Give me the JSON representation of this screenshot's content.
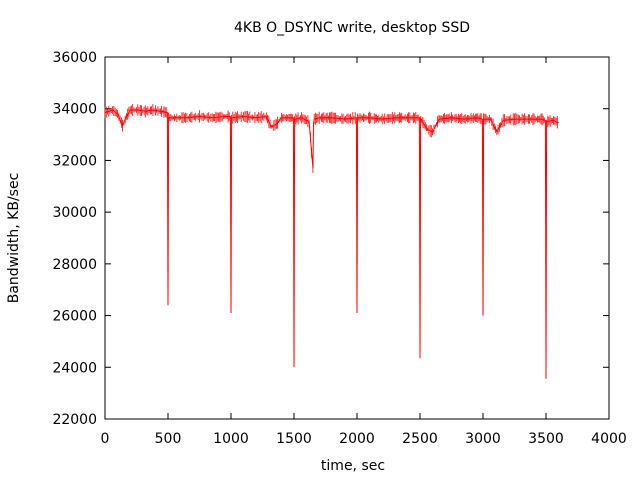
{
  "chart_data": {
    "type": "line",
    "title": "4KB O_DSYNC write, desktop SSD",
    "xlabel": "time, sec",
    "ylabel": "Bandwidth, KB/sec",
    "xlim": [
      0,
      4000
    ],
    "ylim": [
      22000,
      36000
    ],
    "xticks": [
      0,
      500,
      1000,
      1500,
      2000,
      2500,
      3000,
      3500,
      4000
    ],
    "yticks": [
      22000,
      24000,
      26000,
      28000,
      30000,
      32000,
      34000,
      36000
    ],
    "grid": false,
    "legend": "none",
    "series_color": "#ff0000",
    "series": [
      {
        "x": [
          0,
          30,
          60,
          100,
          140,
          170,
          200,
          260,
          320,
          380,
          440,
          495,
          500,
          505,
          560,
          650,
          750,
          850,
          950,
          995,
          1000,
          1005,
          1100,
          1200,
          1280,
          1320,
          1360,
          1400,
          1460,
          1495,
          1500,
          1505,
          1560,
          1620,
          1650,
          1655,
          1660,
          1700,
          1800,
          1900,
          1995,
          2000,
          2005,
          2100,
          2200,
          2300,
          2400,
          2495,
          2500,
          2505,
          2560,
          2600,
          2650,
          2750,
          2850,
          2950,
          2995,
          3000,
          3005,
          3060,
          3110,
          3160,
          3260,
          3360,
          3460,
          3495,
          3500,
          3505,
          3560,
          3600
        ],
        "values": [
          33850,
          33900,
          33950,
          33800,
          33350,
          33700,
          33950,
          33950,
          33900,
          33950,
          33900,
          33850,
          26400,
          33650,
          33650,
          33650,
          33700,
          33650,
          33700,
          33700,
          26100,
          33650,
          33700,
          33650,
          33700,
          33300,
          33400,
          33650,
          33650,
          33650,
          24000,
          33600,
          33650,
          33500,
          31700,
          33400,
          33600,
          33650,
          33650,
          33600,
          33650,
          26100,
          33650,
          33650,
          33600,
          33650,
          33650,
          33650,
          24350,
          33600,
          33200,
          33100,
          33600,
          33650,
          33600,
          33650,
          33600,
          26000,
          33600,
          33600,
          33100,
          33550,
          33600,
          33600,
          33600,
          33550,
          23550,
          33500,
          33550,
          33450
        ]
      }
    ]
  }
}
